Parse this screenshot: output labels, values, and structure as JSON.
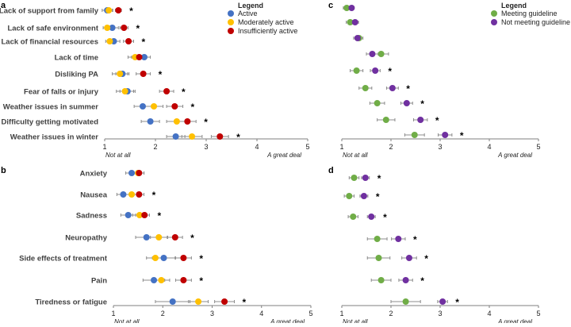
{
  "colors": {
    "Active": "#4472C4",
    "Moderately active": "#FFC000",
    "Insufficiently active": "#C00000",
    "Meeting guideline": "#70AD47",
    "Not meeting guideline": "#7030A0"
  },
  "chart_data": [
    {
      "panel": "a",
      "type": "scatter",
      "legend": {
        "title": "Legend",
        "items": [
          "Active",
          "Moderately active",
          "Insufficiently active"
        ],
        "placement": "top-right"
      },
      "categories": [
        "Lack of support from family",
        "Lack of safe environment",
        "Lack of financial resources",
        "Lack of time",
        "Disliking PA",
        "Fear of falls or injury",
        "Weather issues in summer",
        "Difficulty getting motivated",
        "Weather issues in winter"
      ],
      "significant": [
        true,
        true,
        true,
        false,
        true,
        true,
        true,
        true,
        true
      ],
      "xlim": [
        1,
        5
      ],
      "xticks": [
        "1",
        "2",
        "3",
        "4",
        "5"
      ],
      "x_end_labels": [
        "Not at all",
        "A great deal"
      ],
      "series": [
        {
          "name": "Active",
          "values": [
            1.05,
            1.15,
            1.18,
            1.78,
            1.35,
            1.45,
            1.75,
            1.9,
            2.4
          ],
          "err": [
            0.1,
            0.12,
            0.12,
            0.12,
            0.13,
            0.15,
            0.17,
            0.18,
            0.18
          ]
        },
        {
          "name": "Moderately active",
          "values": [
            1.08,
            1.05,
            1.1,
            1.6,
            1.3,
            1.4,
            1.97,
            2.42,
            2.72
          ],
          "err": [
            0.08,
            0.08,
            0.08,
            0.14,
            0.15,
            0.17,
            0.18,
            0.2,
            0.2
          ]
        },
        {
          "name": "Insufficiently active",
          "values": [
            1.27,
            1.38,
            1.47,
            1.68,
            1.76,
            2.22,
            2.38,
            2.63,
            3.27
          ],
          "err": [
            0.06,
            0.08,
            0.1,
            0.15,
            0.14,
            0.14,
            0.16,
            0.17,
            0.17
          ]
        }
      ]
    },
    {
      "panel": "b",
      "type": "scatter",
      "categories": [
        "Anxiety",
        "Nausea",
        "Sadness",
        "Neuropathy",
        "Side effects of treatment",
        "Pain",
        "Tiredness or fatigue"
      ],
      "significant": [
        false,
        true,
        true,
        true,
        true,
        true,
        true
      ],
      "xlim": [
        1,
        5
      ],
      "xticks": [
        "1",
        "2",
        "3",
        "4",
        "5"
      ],
      "x_end_labels": [
        "Not at all",
        "A great deal"
      ],
      "series": [
        {
          "name": "Active",
          "values": [
            1.37,
            1.2,
            1.3,
            1.67,
            2.02,
            1.82,
            2.2
          ],
          "err": [
            0.12,
            0.13,
            0.15,
            0.22,
            0.23,
            0.22,
            0.35
          ]
        },
        {
          "name": "Moderately active",
          "values": [
            1.5,
            1.37,
            1.53,
            1.92,
            1.85,
            1.97,
            2.72
          ],
          "err": [
            0.12,
            0.13,
            0.14,
            0.17,
            0.18,
            0.17,
            0.2
          ]
        },
        {
          "name": "Insufficiently active",
          "values": [
            1.52,
            1.52,
            1.63,
            2.25,
            2.42,
            2.42,
            3.25
          ],
          "err": [
            0.1,
            0.1,
            0.1,
            0.15,
            0.16,
            0.16,
            0.2
          ]
        }
      ]
    },
    {
      "panel": "c",
      "type": "scatter",
      "legend": {
        "title": "Legend",
        "items": [
          "Meeting guideline",
          "Not meeting guideline"
        ],
        "placement": "top-right"
      },
      "categories": [
        "Lack of support from family",
        "Lack of safe environment",
        "Lack of financial resources",
        "Lack of time",
        "Disliking PA",
        "Fear of falls or injury",
        "Weather issues in summer",
        "Difficulty getting motivated",
        "Weather issues in winter"
      ],
      "significant": [
        false,
        false,
        false,
        false,
        true,
        true,
        true,
        true,
        true
      ],
      "xlim": [
        1,
        5
      ],
      "xticks": [
        "1",
        "2",
        "3",
        "4",
        "5"
      ],
      "x_end_labels": [
        "Not at all",
        "A great deal"
      ],
      "series": [
        {
          "name": "Meeting guideline",
          "values": [
            1.1,
            1.17,
            1.35,
            1.8,
            1.3,
            1.48,
            1.72,
            1.9,
            2.48
          ],
          "err": [
            0.07,
            0.08,
            0.08,
            0.15,
            0.13,
            0.13,
            0.15,
            0.18,
            0.2
          ]
        },
        {
          "name": "Not meeting guideline",
          "values": [
            1.2,
            1.27,
            1.32,
            1.62,
            1.68,
            2.03,
            2.32,
            2.6,
            3.1
          ],
          "err": [
            0.05,
            0.07,
            0.08,
            0.12,
            0.1,
            0.12,
            0.12,
            0.14,
            0.14
          ]
        }
      ]
    },
    {
      "panel": "d",
      "type": "scatter",
      "categories": [
        "Anxiety",
        "Nausea",
        "Sadness",
        "Neuropathy",
        "Side effects of treatment",
        "Pain",
        "Tiredness or fatigue"
      ],
      "significant": [
        true,
        true,
        true,
        true,
        true,
        true,
        true
      ],
      "xlim": [
        1,
        5
      ],
      "xticks": [
        "1",
        "2",
        "3",
        "4",
        "5"
      ],
      "x_end_labels": [
        "Not at all",
        "A great deal"
      ],
      "series": [
        {
          "name": "Meeting guideline",
          "values": [
            1.25,
            1.15,
            1.23,
            1.72,
            1.75,
            1.8,
            2.3
          ],
          "err": [
            0.1,
            0.1,
            0.1,
            0.2,
            0.23,
            0.2,
            0.3
          ]
        },
        {
          "name": "Not meeting guideline",
          "values": [
            1.48,
            1.45,
            1.6,
            2.15,
            2.37,
            2.3,
            3.05
          ],
          "err": [
            0.08,
            0.08,
            0.08,
            0.14,
            0.15,
            0.14,
            0.1
          ]
        }
      ]
    }
  ]
}
